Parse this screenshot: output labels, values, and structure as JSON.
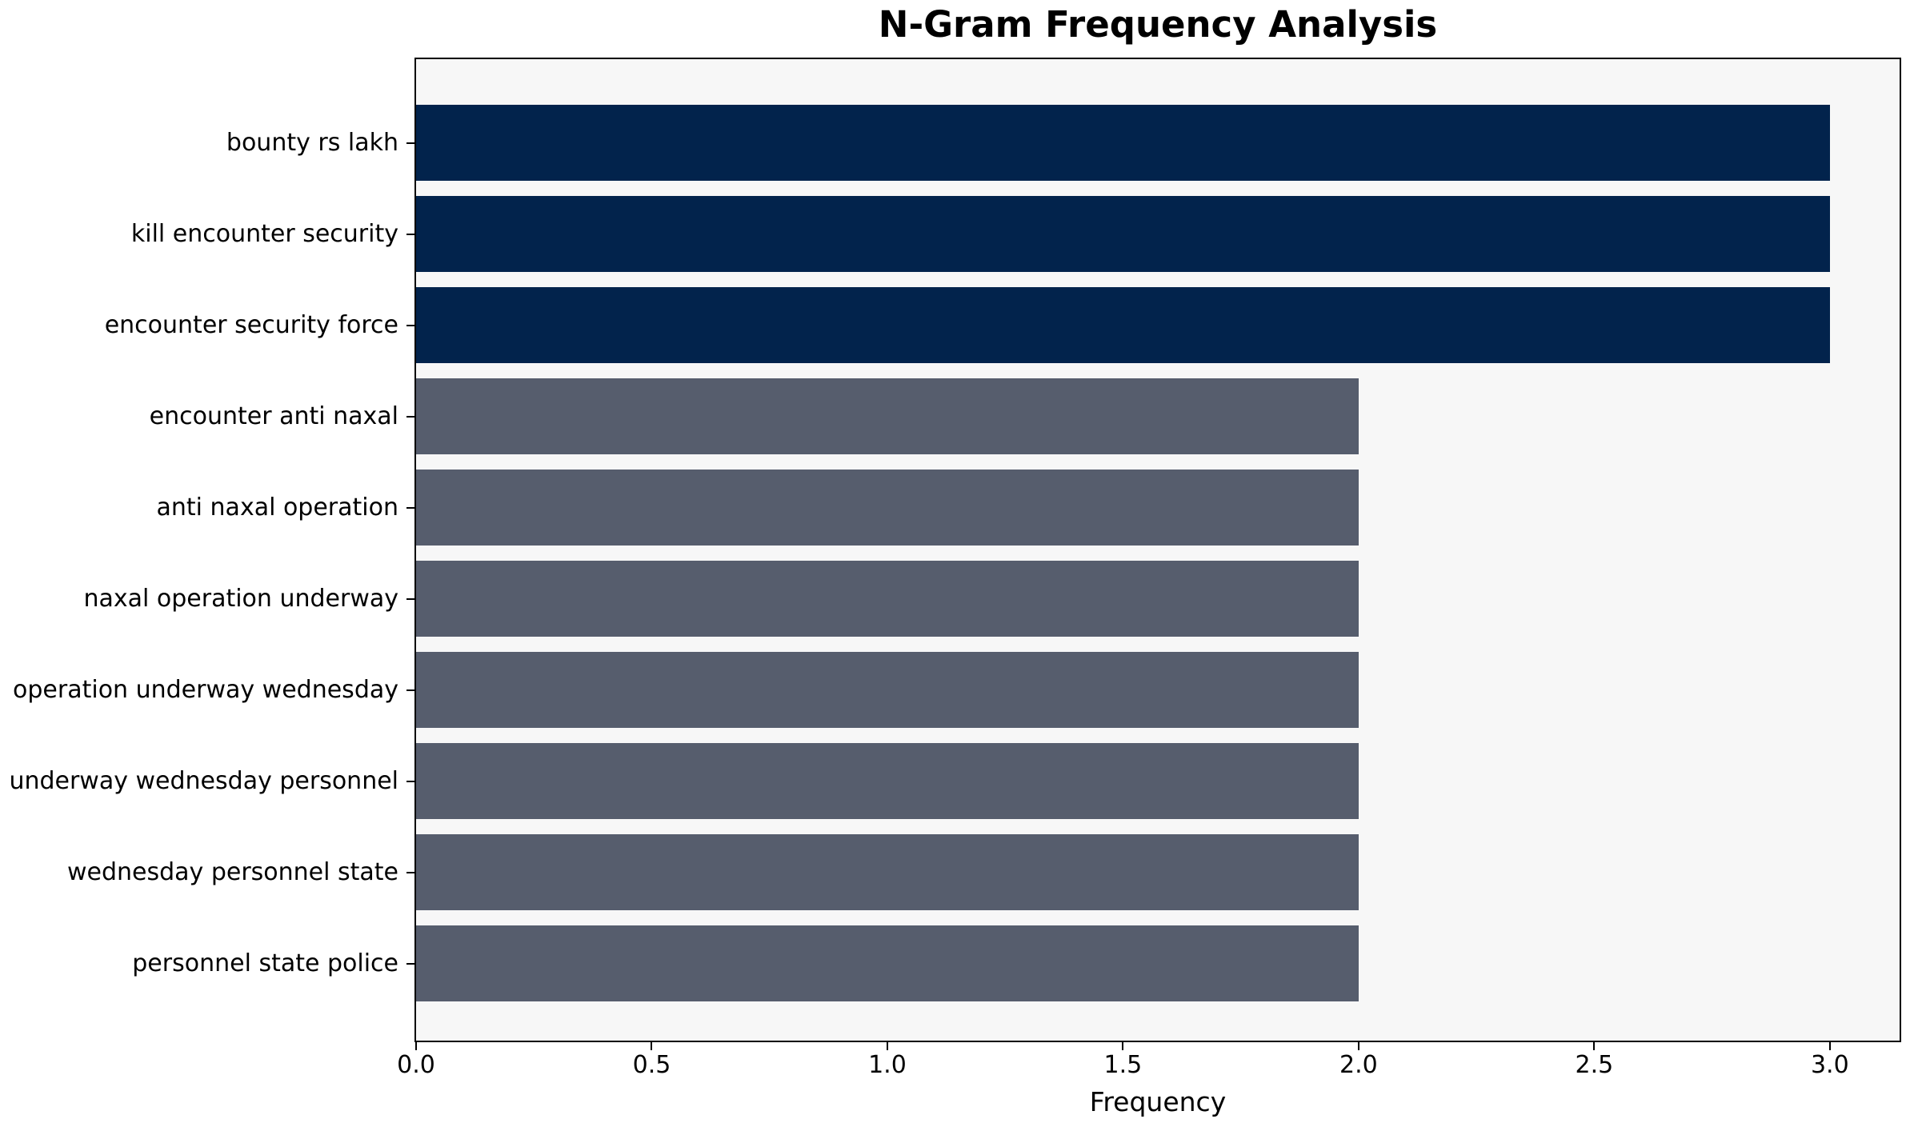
{
  "chart_data": {
    "type": "bar",
    "orientation": "horizontal",
    "title": "N-Gram Frequency Analysis",
    "xlabel": "Frequency",
    "ylabel": "",
    "categories": [
      "bounty rs lakh",
      "kill encounter security",
      "encounter security force",
      "encounter anti naxal",
      "anti naxal operation",
      "naxal operation underway",
      "operation underway wednesday",
      "underway wednesday personnel",
      "wednesday personnel state",
      "personnel state police"
    ],
    "values": [
      3,
      3,
      3,
      2,
      2,
      2,
      2,
      2,
      2,
      2
    ],
    "bar_colors": [
      "#02234C",
      "#02234C",
      "#02234C",
      "#565D6D",
      "#565D6D",
      "#565D6D",
      "#565D6D",
      "#565D6D",
      "#565D6D",
      "#565D6D"
    ],
    "xtick_labels": [
      "0.0",
      "0.5",
      "1.0",
      "1.5",
      "2.0",
      "2.5",
      "3.0"
    ],
    "xtick_values": [
      0.0,
      0.5,
      1.0,
      1.5,
      2.0,
      2.5,
      3.0
    ],
    "xlim": [
      0,
      3.148
    ],
    "grid": false,
    "legend": "none",
    "colors": {
      "high_frequency_bar": "#02234C",
      "low_frequency_bar": "#565D6D",
      "plot_background": "#F7F7F7",
      "figure_background": "#FFFFFF",
      "axis_spine": "#000000",
      "text": "#000000"
    }
  }
}
